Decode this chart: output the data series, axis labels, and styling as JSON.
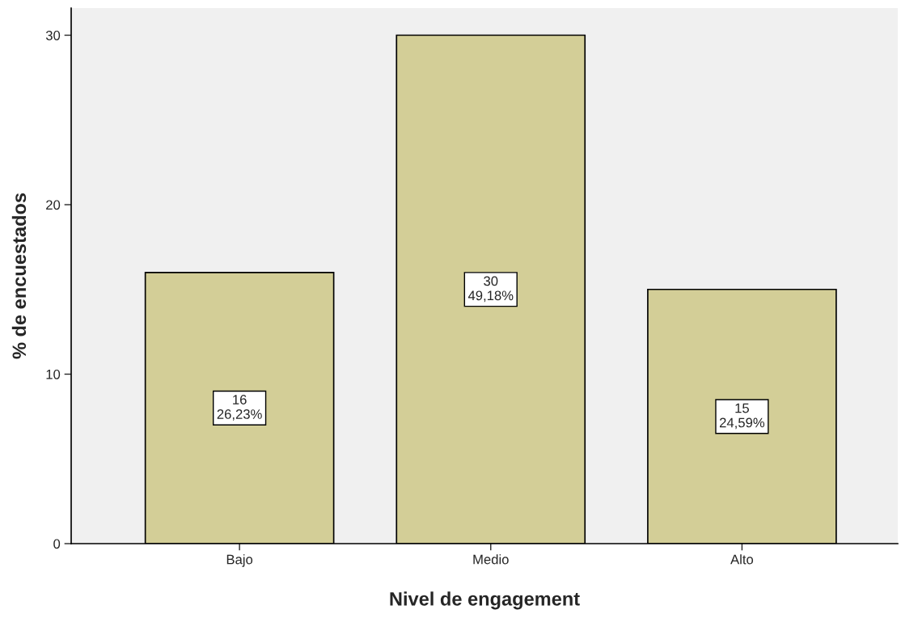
{
  "chart_data": {
    "type": "bar",
    "xlabel": "Nivel de engagement",
    "ylabel": "% de encuestados",
    "categories": [
      "Bajo",
      "Medio",
      "Alto"
    ],
    "values": [
      16,
      30,
      15
    ],
    "value_labels": [
      "16\n26,23%",
      "30\n49,18%",
      "15\n24,59%"
    ],
    "color": "#d3ce97",
    "ylim": [
      0,
      31.6
    ],
    "yticks": [
      0,
      10,
      20,
      30
    ],
    "grid": false
  }
}
